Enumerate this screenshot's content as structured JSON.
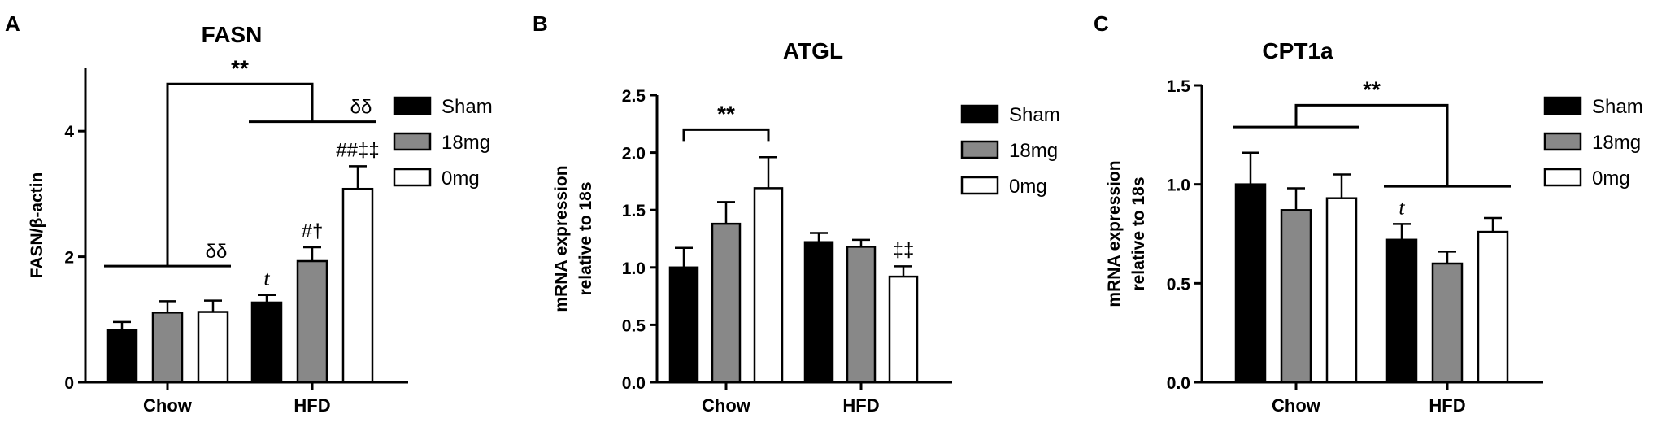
{
  "colors": {
    "sham": "#000000",
    "mg18": "#888888",
    "mg0": "#ffffff",
    "stroke": "#000000"
  },
  "legend": [
    "Sham",
    "18mg",
    "0mg"
  ],
  "chart_data": [
    {
      "type": "bar",
      "panel": "A",
      "title": "FASN",
      "ylabel": "FASN/β-actin",
      "ylabel_lines": [
        "FASN/β-actin"
      ],
      "ylim": [
        0,
        5
      ],
      "yticks": [
        0,
        2,
        4
      ],
      "ytick_labels": [
        "0",
        "2",
        "4"
      ],
      "categories": [
        "Chow",
        "HFD"
      ],
      "series": [
        {
          "name": "Sham",
          "values": [
            0.83,
            1.27
          ],
          "errors": [
            0.13,
            0.12
          ]
        },
        {
          "name": "18mg",
          "values": [
            1.11,
            1.93
          ],
          "errors": [
            0.18,
            0.22
          ]
        },
        {
          "name": "0mg",
          "values": [
            1.12,
            3.08
          ],
          "errors": [
            0.18,
            0.36
          ]
        }
      ],
      "bar_labels": [
        {
          "series": 0,
          "cat": 1,
          "text": "t",
          "italic": true
        },
        {
          "series": 1,
          "cat": 1,
          "text": "#†"
        },
        {
          "series": 2,
          "cat": 1,
          "text": "##‡‡"
        }
      ],
      "annotations": [
        {
          "kind": "line",
          "from": [
            0,
            0
          ],
          "to": [
            0,
            2
          ],
          "y": 1.85,
          "text": "δδ"
        },
        {
          "kind": "line",
          "from": [
            1,
            0
          ],
          "to": [
            1,
            2
          ],
          "y": 4.15,
          "text": "δδ"
        },
        {
          "kind": "bracket",
          "y": 4.75,
          "from_y": 1.85,
          "to_y": 4.15,
          "text": "**"
        }
      ]
    },
    {
      "type": "bar",
      "panel": "B",
      "title": "ATGL",
      "ylabel": "mRNA expression relative to 18s",
      "ylabel_lines": [
        "mRNA expression",
        "relative to 18s"
      ],
      "ylim": [
        0,
        2.5
      ],
      "yticks": [
        0,
        0.5,
        1,
        1.5,
        2,
        2.5
      ],
      "ytick_labels": [
        "0.0",
        "0.5",
        "1.0",
        "1.5",
        "2.0",
        "2.5"
      ],
      "categories": [
        "Chow",
        "HFD"
      ],
      "series": [
        {
          "name": "Sham",
          "values": [
            1.0,
            1.22
          ],
          "errors": [
            0.17,
            0.08
          ]
        },
        {
          "name": "18mg",
          "values": [
            1.38,
            1.18
          ],
          "errors": [
            0.19,
            0.06
          ]
        },
        {
          "name": "0mg",
          "values": [
            1.69,
            0.92
          ],
          "errors": [
            0.27,
            0.09
          ]
        }
      ],
      "bar_labels": [
        {
          "series": 2,
          "cat": 1,
          "text": "‡‡"
        }
      ],
      "annotations": [
        {
          "kind": "sig",
          "cat": 0,
          "from_series": 0,
          "to_series": 2,
          "y": 2.2,
          "text": "**"
        }
      ]
    },
    {
      "type": "bar",
      "panel": "C",
      "title": "CPT1a",
      "ylabel": "mRNA expression relative to 18s",
      "ylabel_lines": [
        "mRNA expression",
        "relative to 18s"
      ],
      "ylim": [
        0,
        1.5
      ],
      "yticks": [
        0,
        0.5,
        1,
        1.5
      ],
      "ytick_labels": [
        "0.0",
        "0.5",
        "1.0",
        "1.5"
      ],
      "categories": [
        "Chow",
        "HFD"
      ],
      "series": [
        {
          "name": "Sham",
          "values": [
            1.0,
            0.72
          ],
          "errors": [
            0.16,
            0.08
          ]
        },
        {
          "name": "18mg",
          "values": [
            0.87,
            0.6
          ],
          "errors": [
            0.11,
            0.06
          ]
        },
        {
          "name": "0mg",
          "values": [
            0.93,
            0.76
          ],
          "errors": [
            0.12,
            0.07
          ]
        }
      ],
      "bar_labels": [
        {
          "series": 0,
          "cat": 1,
          "text": "t",
          "italic": true
        }
      ],
      "annotations": [
        {
          "kind": "line",
          "from": [
            0,
            0
          ],
          "to": [
            0,
            2
          ],
          "y": 1.29,
          "text": ""
        },
        {
          "kind": "line",
          "from": [
            1,
            0
          ],
          "to": [
            1,
            2
          ],
          "y": 0.99,
          "text": ""
        },
        {
          "kind": "bracket",
          "y": 1.4,
          "from_y": 1.29,
          "to_y": 0.99,
          "text": "**"
        }
      ]
    }
  ]
}
